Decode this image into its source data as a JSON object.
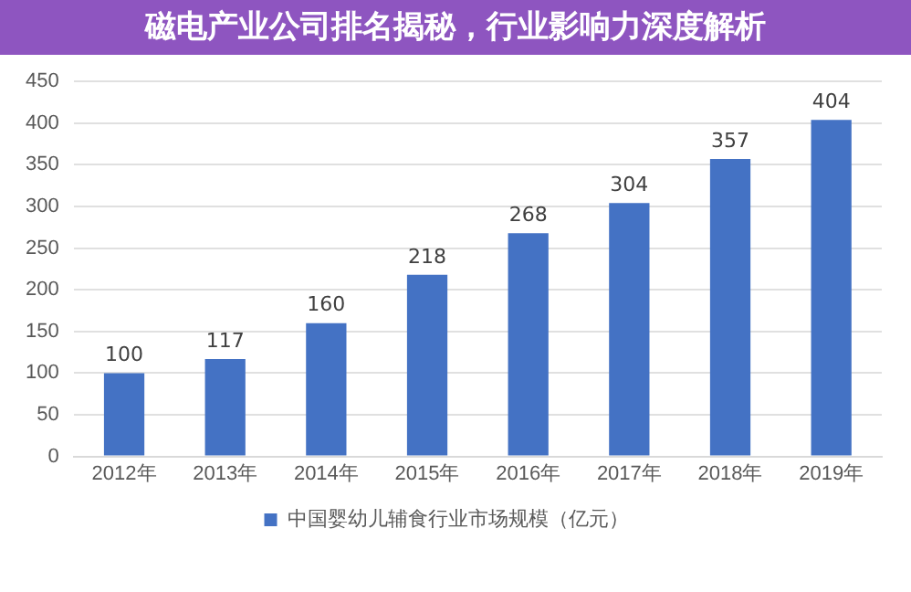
{
  "chart_data": {
    "type": "bar",
    "title": "磁电产业公司排名揭秘，行业影响力深度解析",
    "categories": [
      "2012年",
      "2013年",
      "2014年",
      "2015年",
      "2016年",
      "2017年",
      "2018年",
      "2019年"
    ],
    "series": [
      {
        "name": "中国婴幼儿辅食行业市场规模（亿元）",
        "color": "#4472c4",
        "values": [
          100,
          117,
          160,
          218,
          268,
          304,
          357,
          404
        ]
      }
    ],
    "ylim": [
      0,
      450
    ],
    "yticks": [
      0,
      50,
      100,
      150,
      200,
      250,
      300,
      350,
      400,
      450
    ],
    "grid": "y",
    "legend": "bottom",
    "data_labels": true
  }
}
